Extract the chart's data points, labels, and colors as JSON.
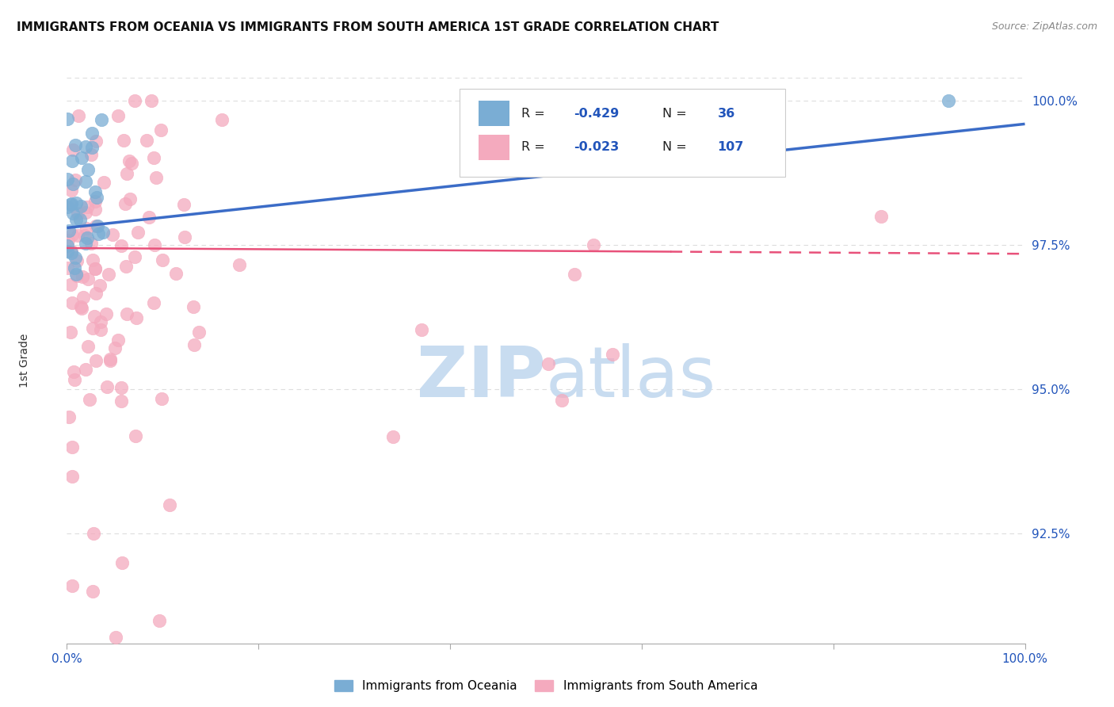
{
  "title": "IMMIGRANTS FROM OCEANIA VS IMMIGRANTS FROM SOUTH AMERICA 1ST GRADE CORRELATION CHART",
  "source": "Source: ZipAtlas.com",
  "ylabel": "1st Grade",
  "ytick_labels": [
    "100.0%",
    "97.5%",
    "95.0%",
    "92.5%"
  ],
  "ytick_values": [
    1.0,
    0.975,
    0.95,
    0.925
  ],
  "xlim": [
    0.0,
    1.0
  ],
  "ylim": [
    0.906,
    1.004
  ],
  "oceania_color": "#7AADD4",
  "sa_color": "#F4AABE",
  "trendline_oceania_color": "#3B6CC7",
  "trendline_sa_color": "#E8517A",
  "background_color": "#FFFFFF",
  "grid_color": "#DDDDDD",
  "watermark_color": "#C8DCF0",
  "legend_label_oceania": "Immigrants from Oceania",
  "legend_label_sa": "Immigrants from South America",
  "oceania_N": 36,
  "sa_N": 107,
  "trendline_oce_x0": 0.0,
  "trendline_oce_y0": 0.978,
  "trendline_oce_x1": 1.0,
  "trendline_oce_y1": 0.996,
  "trendline_sa_x0": 0.0,
  "trendline_sa_y0": 0.9745,
  "trendline_sa_x1": 1.0,
  "trendline_sa_y1": 0.9735
}
